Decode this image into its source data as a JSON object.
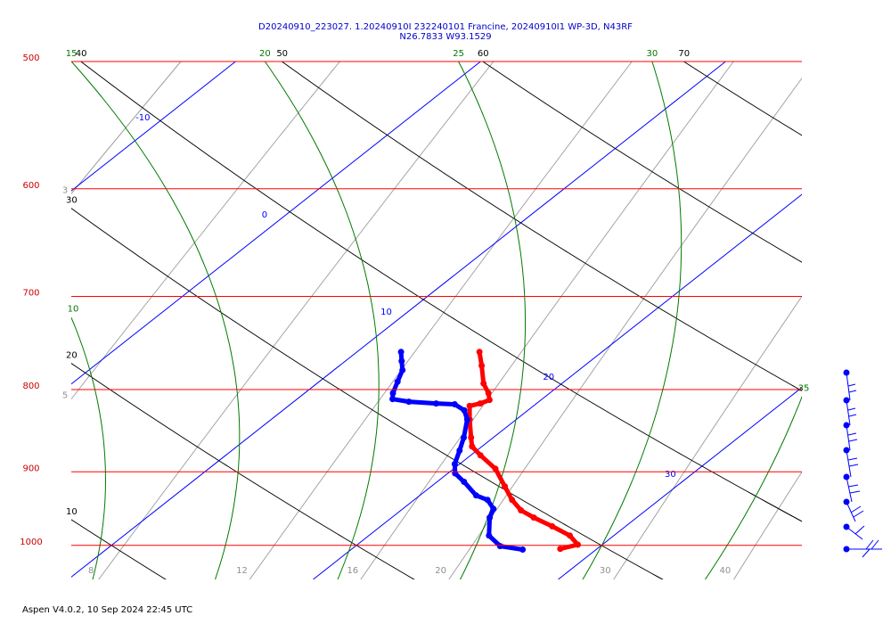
{
  "chart_data": {
    "type": "skewt",
    "title": "D20240910_223027. 1.20240910I 232240101 Francine, 20240910I1 WP-3D, N43RF",
    "subtitle": "N26.7833 W93.1529",
    "log_scale": true,
    "ylim": [
      500,
      1050
    ],
    "yticks": [
      500,
      600,
      700,
      800,
      900,
      1000
    ],
    "isobar_color": "#ff0000",
    "isotherms": [
      -10,
      0,
      10,
      20,
      30
    ],
    "isotherm_color": "#0000ff",
    "dry_adiabats": [
      10,
      20,
      30,
      40,
      50,
      60,
      70
    ],
    "dry_adiabat_color": "#000000",
    "moist_adiabats": [
      10,
      15,
      20,
      25,
      30,
      35
    ],
    "moist_adiabat_color": "#007a00",
    "mixing_ratios": [
      3,
      5,
      8,
      12,
      16,
      20,
      30,
      40
    ],
    "mixing_ratio_color": "#a0a0a0",
    "series": [
      {
        "color": "#ff0000",
        "pressure": [
          758,
          773,
          793,
          804,
          812,
          816,
          819,
          835,
          857,
          868,
          879,
          896,
          919,
          937,
          951,
          961,
          973,
          986,
          999,
          1005
        ],
        "temperature": [
          15.0,
          15.8,
          16.8,
          17.5,
          17.9,
          17.7,
          17.4,
          18.1,
          19.1,
          19.6,
          20.4,
          21.7,
          23.0,
          24.0,
          24.9,
          25.8,
          27.0,
          28.2,
          29.0,
          28.5
        ]
      },
      {
        "color": "#0000ff",
        "pressure": [
          758,
          768,
          778,
          791,
          804,
          811,
          814,
          816,
          817,
          824,
          835,
          857,
          873,
          890,
          902,
          913,
          931,
          937,
          949,
          961,
          986,
          1001,
          1006
        ],
        "temperature": [
          11.8,
          12.3,
          12.8,
          13.2,
          13.6,
          13.9,
          14.7,
          15.9,
          16.7,
          17.4,
          18.0,
          18.8,
          19.3,
          19.8,
          20.3,
          21.1,
          22.3,
          23.0,
          23.7,
          24.0,
          24.9,
          25.9,
          27.0
        ]
      }
    ]
  },
  "footer": "Aspen V4.0.2, 10 Sep 2024  22:45 UTC"
}
